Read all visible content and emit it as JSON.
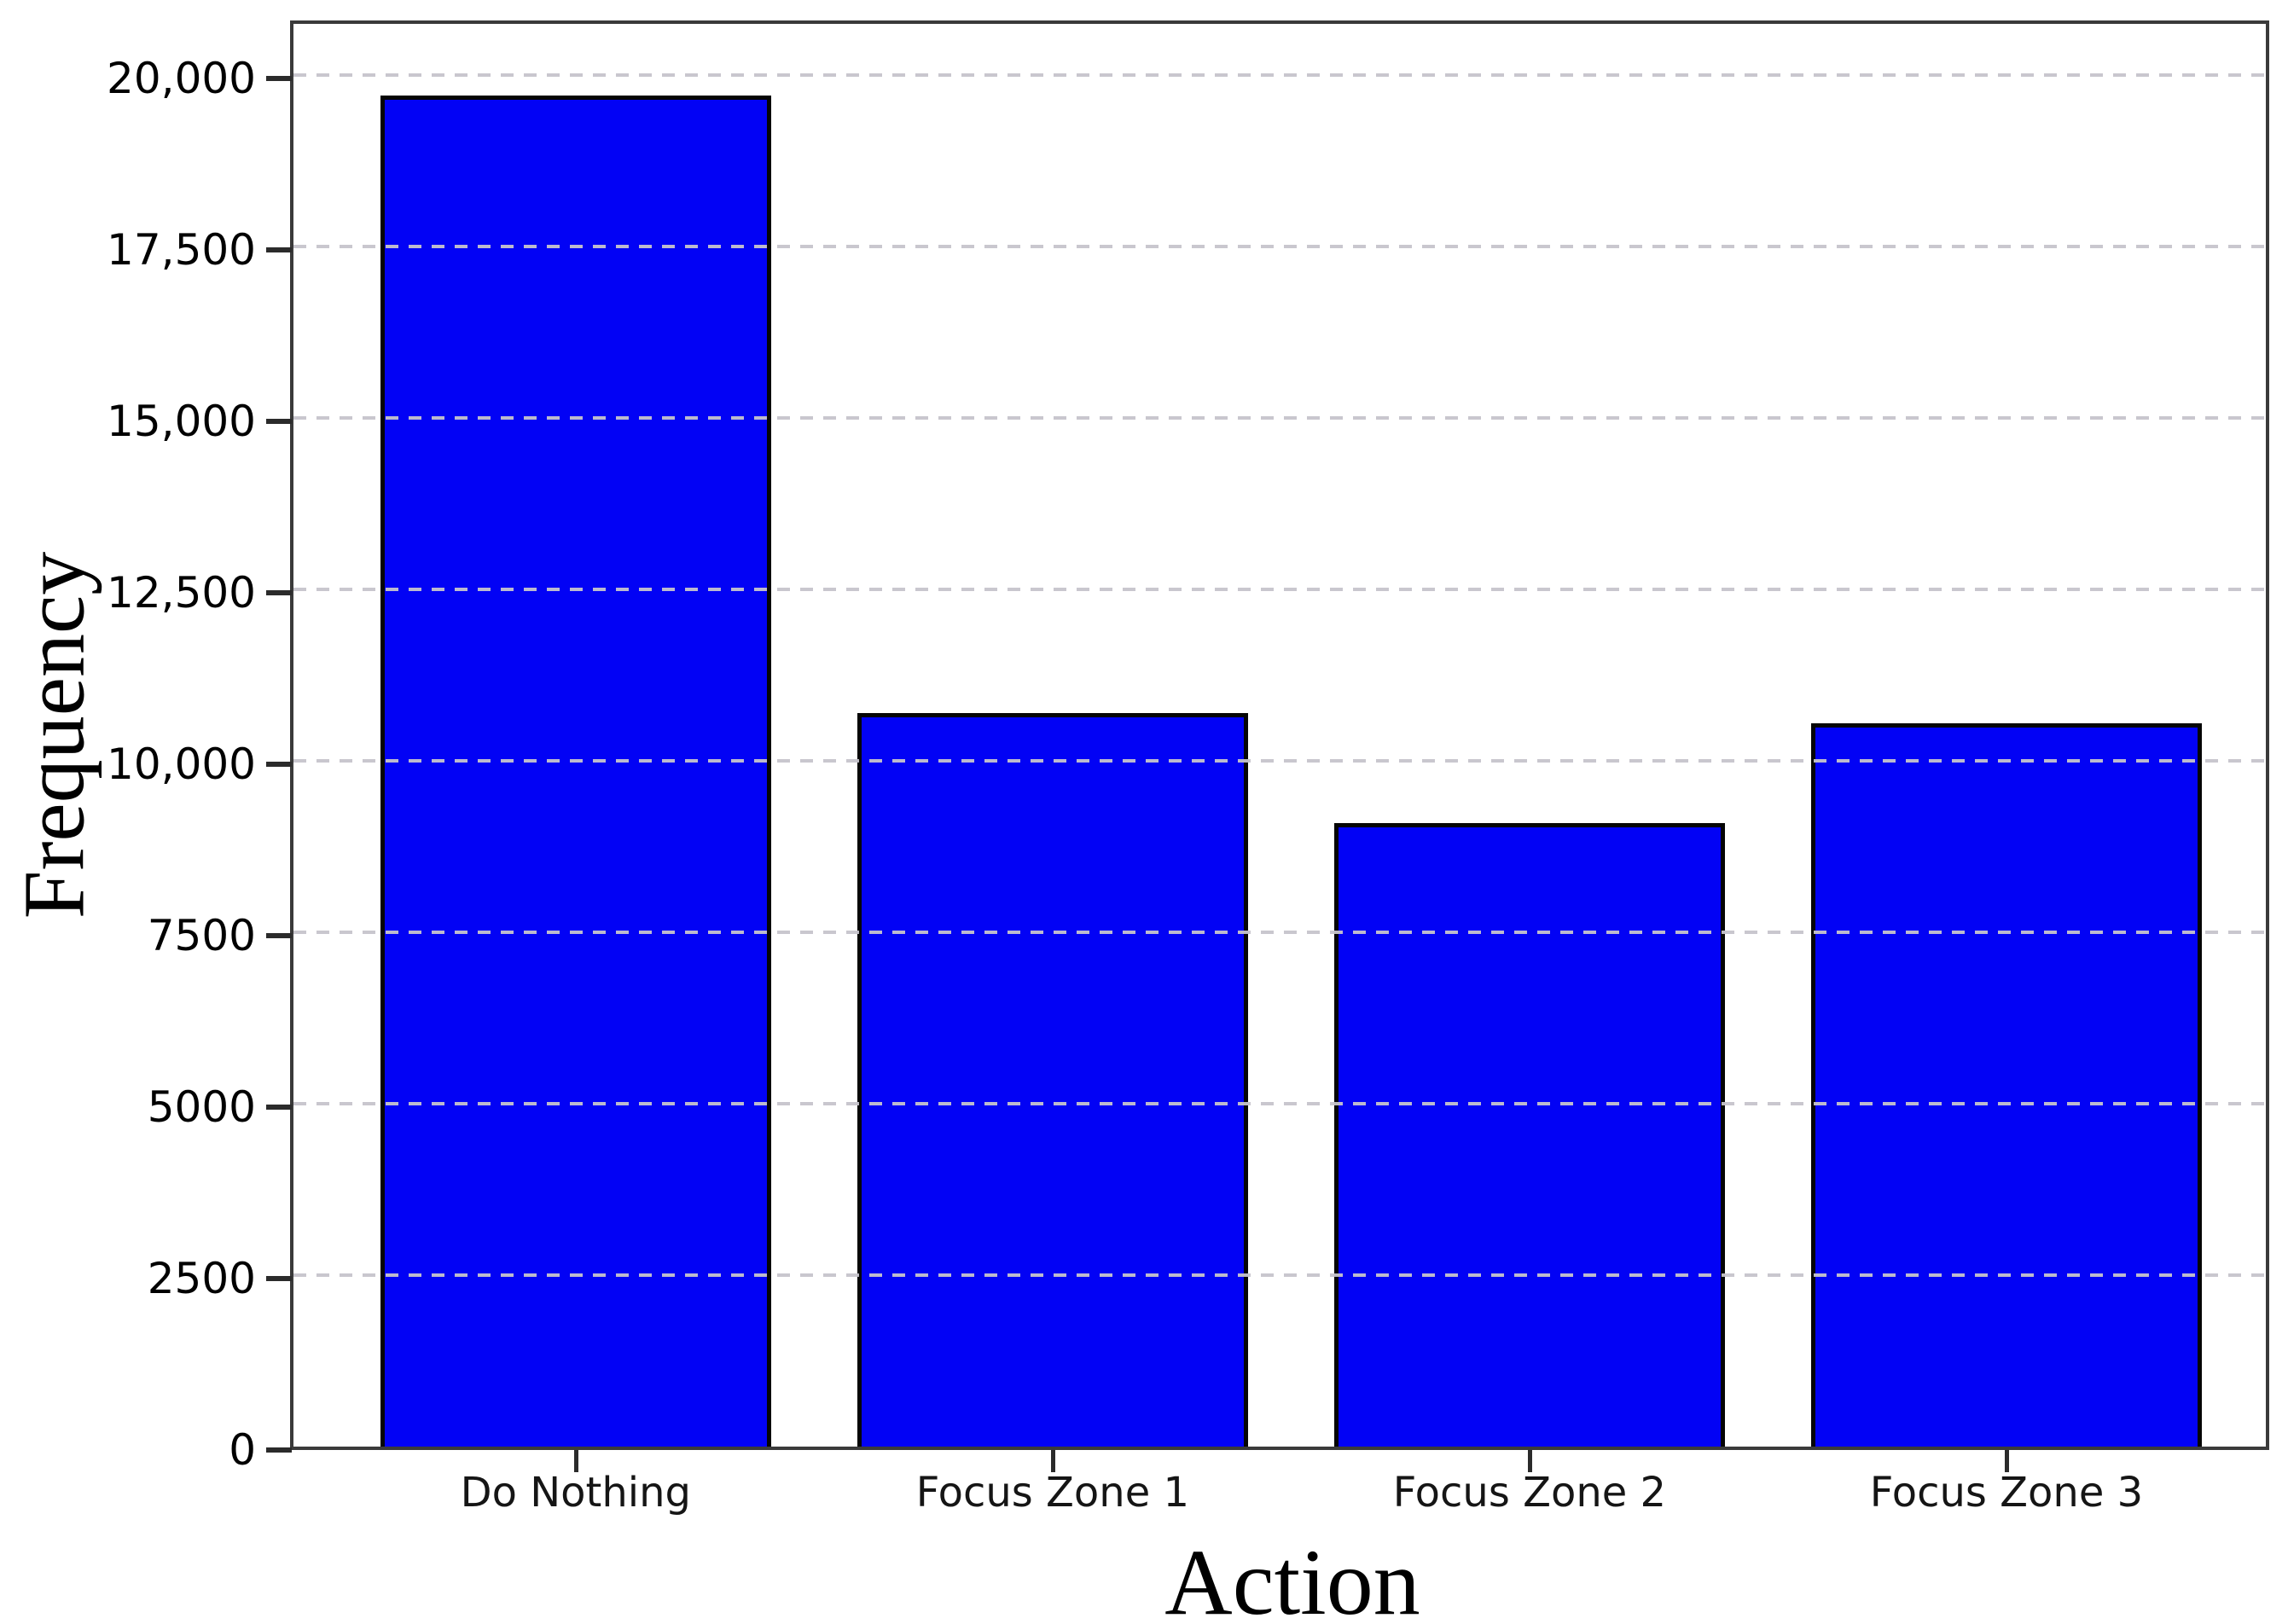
{
  "chart_data": {
    "type": "bar",
    "title": "",
    "xlabel": "Action",
    "ylabel": "Frequency",
    "categories": [
      "Do Nothing",
      "Focus Zone 1",
      "Focus Zone 2",
      "Focus Zone 3"
    ],
    "values": [
      19700,
      10700,
      9100,
      10550
    ],
    "ylim": [
      0,
      20750
    ],
    "yticks": [
      {
        "value": 0,
        "label": "0"
      },
      {
        "value": 2500,
        "label": "2500"
      },
      {
        "value": 5000,
        "label": "5000"
      },
      {
        "value": 7500,
        "label": "7500"
      },
      {
        "value": 10000,
        "label": "10,000"
      },
      {
        "value": 12500,
        "label": "12,500"
      },
      {
        "value": 15000,
        "label": "15,000"
      },
      {
        "value": 17500,
        "label": "17,500"
      },
      {
        "value": 20000,
        "label": "20,000"
      }
    ],
    "grid": "horizontal-dashed",
    "legend": "none",
    "bar_color": "#0202f5",
    "bar_edge_color": "#050505",
    "spine_color": "#3a3a3a",
    "gridline_color": "#c6c4cc"
  }
}
